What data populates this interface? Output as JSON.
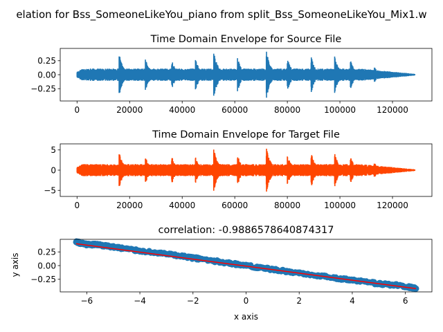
{
  "figure": {
    "suptitle": "elation for Bss_SomeoneLikeYou_piano from split_Bss_SomeoneLikeYou_Mix1.w"
  },
  "chart_data": [
    {
      "type": "line",
      "title": "Time Domain Envelope for Source File",
      "xlabel": "",
      "ylabel": "",
      "color": "#1f77b4",
      "xlim": [
        -6400,
        135000
      ],
      "ylim": [
        -0.47,
        0.47
      ],
      "xticks": [
        0,
        20000,
        40000,
        60000,
        80000,
        100000,
        120000
      ],
      "yticks": [
        0.25,
        0.0,
        -0.25
      ],
      "ytick_labels": [
        "0.25",
        "0.00",
        "−0.25"
      ],
      "n_samples": 128500,
      "base_amplitude": 0.11,
      "peaks": [
        {
          "x": 16000,
          "y": 0.38
        },
        {
          "x": 26000,
          "y": 0.3
        },
        {
          "x": 36000,
          "y": 0.29
        },
        {
          "x": 45000,
          "y": 0.3
        },
        {
          "x": 52000,
          "y": 0.44
        },
        {
          "x": 61000,
          "y": 0.33
        },
        {
          "x": 72000,
          "y": 0.46
        },
        {
          "x": 80000,
          "y": 0.33
        },
        {
          "x": 89000,
          "y": 0.35
        },
        {
          "x": 98000,
          "y": 0.33
        },
        {
          "x": 104000,
          "y": 0.27
        },
        {
          "x": 113000,
          "y": 0.16
        }
      ]
    },
    {
      "type": "line",
      "title": "Time Domain Envelope for Target File",
      "xlabel": "",
      "ylabel": "",
      "color": "#ff4500",
      "xlim": [
        -6400,
        135000
      ],
      "ylim": [
        -6.5,
        6.5
      ],
      "xticks": [
        0,
        20000,
        40000,
        60000,
        80000,
        100000,
        120000
      ],
      "yticks": [
        5,
        0,
        -5
      ],
      "ytick_labels": [
        "5",
        "0",
        "−5"
      ],
      "n_samples": 128500,
      "base_amplitude": 1.5,
      "peaks": [
        {
          "x": 16000,
          "y": 4.6
        },
        {
          "x": 26000,
          "y": 3.4
        },
        {
          "x": 36000,
          "y": 3.6
        },
        {
          "x": 45000,
          "y": 3.4
        },
        {
          "x": 52000,
          "y": 5.6
        },
        {
          "x": 61000,
          "y": 4.0
        },
        {
          "x": 72000,
          "y": 6.1
        },
        {
          "x": 80000,
          "y": 4.4
        },
        {
          "x": 89000,
          "y": 4.8
        },
        {
          "x": 98000,
          "y": 4.4
        },
        {
          "x": 104000,
          "y": 3.6
        },
        {
          "x": 113000,
          "y": 2.0
        }
      ]
    },
    {
      "type": "scatter",
      "title": "correlation: -0.9886578640874317",
      "xlabel": "x axis",
      "ylabel": "y axis",
      "point_color": "#1f77b4",
      "fit_color": "#ff0000",
      "xlim": [
        -7.0,
        7.0
      ],
      "ylim": [
        -0.48,
        0.48
      ],
      "xticks": [
        -6,
        -4,
        -2,
        0,
        2,
        4,
        6
      ],
      "xtick_labels": [
        "−6",
        "−4",
        "−2",
        "0",
        "2",
        "4",
        "6"
      ],
      "yticks": [
        0.25,
        0.0,
        -0.25
      ],
      "ytick_labels": [
        "0.25",
        "0.00",
        "−0.25"
      ],
      "fit_line": {
        "x": [
          -6.4,
          6.4
        ],
        "y": [
          0.4,
          -0.42
        ]
      },
      "points": [
        {
          "x": -6.4,
          "y": 0.43
        },
        {
          "x": -6.0,
          "y": 0.38
        },
        {
          "x": -5.6,
          "y": 0.38
        },
        {
          "x": -5.0,
          "y": 0.34
        },
        {
          "x": -4.0,
          "y": 0.27
        },
        {
          "x": -3.0,
          "y": 0.21
        },
        {
          "x": -2.0,
          "y": 0.14
        },
        {
          "x": -1.0,
          "y": 0.07
        },
        {
          "x": 0.0,
          "y": 0.0
        },
        {
          "x": 1.0,
          "y": -0.07
        },
        {
          "x": 2.0,
          "y": -0.14
        },
        {
          "x": 3.0,
          "y": -0.2
        },
        {
          "x": 4.0,
          "y": -0.27
        },
        {
          "x": 5.0,
          "y": -0.33
        },
        {
          "x": 5.9,
          "y": -0.37
        },
        {
          "x": 6.4,
          "y": -0.42
        }
      ]
    }
  ]
}
